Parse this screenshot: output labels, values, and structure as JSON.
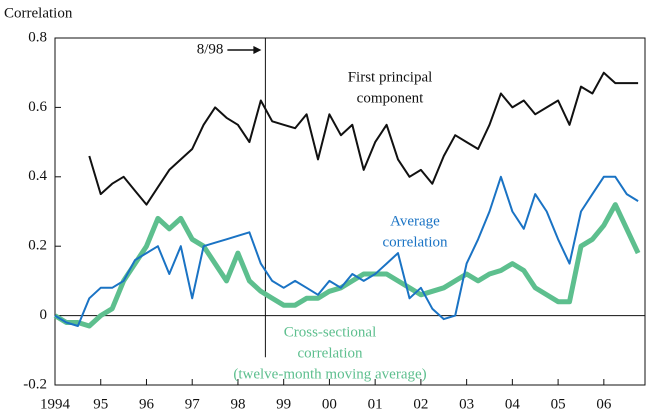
{
  "chart_data": {
    "type": "line",
    "y_label": "Correlation",
    "x": [
      1994.0,
      1994.25,
      1994.5,
      1994.75,
      1995.0,
      1995.25,
      1995.5,
      1995.75,
      1996.0,
      1996.25,
      1996.5,
      1996.75,
      1997.0,
      1997.25,
      1997.5,
      1997.75,
      1998.0,
      1998.25,
      1998.5,
      1998.75,
      1999.0,
      1999.25,
      1999.5,
      1999.75,
      2000.0,
      2000.25,
      2000.5,
      2000.75,
      2001.0,
      2001.25,
      2001.5,
      2001.75,
      2002.0,
      2002.25,
      2002.5,
      2002.75,
      2003.0,
      2003.25,
      2003.5,
      2003.75,
      2004.0,
      2004.25,
      2004.5,
      2004.75,
      2005.0,
      2005.25,
      2005.5,
      2005.75,
      2006.0,
      2006.25,
      2006.5,
      2006.75
    ],
    "series": [
      {
        "name": "First principal component",
        "color": "#111111",
        "width": 2,
        "values": [
          null,
          null,
          null,
          0.46,
          0.35,
          0.38,
          0.4,
          0.36,
          0.32,
          0.37,
          0.42,
          0.45,
          0.48,
          0.55,
          0.6,
          0.57,
          0.55,
          0.5,
          0.62,
          0.56,
          0.55,
          0.54,
          0.58,
          0.45,
          0.58,
          0.52,
          0.55,
          0.42,
          0.5,
          0.55,
          0.45,
          0.4,
          0.42,
          0.38,
          0.46,
          0.52,
          0.5,
          0.48,
          0.55,
          0.64,
          0.6,
          0.62,
          0.58,
          0.6,
          0.62,
          0.55,
          0.66,
          0.64,
          0.7,
          0.67,
          0.67,
          0.67
        ]
      },
      {
        "name": "Average correlation",
        "color": "#1a73c4",
        "width": 2,
        "values": [
          0,
          -0.02,
          -0.03,
          0.05,
          0.08,
          0.08,
          0.1,
          0.16,
          0.18,
          0.2,
          0.12,
          0.2,
          0.05,
          0.2,
          0.21,
          0.22,
          0.23,
          0.24,
          0.15,
          0.1,
          0.08,
          0.1,
          0.08,
          0.06,
          0.1,
          0.08,
          0.12,
          0.1,
          0.12,
          0.15,
          0.18,
          0.05,
          0.08,
          0.02,
          -0.01,
          0.0,
          0.15,
          0.22,
          0.3,
          0.4,
          0.3,
          0.25,
          0.35,
          0.3,
          0.22,
          0.15,
          0.3,
          0.35,
          0.4,
          0.4,
          0.35,
          0.33
        ]
      },
      {
        "name": "Cross-sectional correlation (twelve-month moving average)",
        "color": "#5dbf8e",
        "width": 5,
        "values": [
          0,
          -0.02,
          -0.02,
          -0.03,
          0.0,
          0.02,
          0.1,
          0.15,
          0.2,
          0.28,
          0.25,
          0.28,
          0.22,
          0.2,
          0.15,
          0.1,
          0.18,
          0.1,
          0.07,
          0.05,
          0.03,
          0.03,
          0.05,
          0.05,
          0.07,
          0.08,
          0.1,
          0.12,
          0.12,
          0.12,
          0.1,
          0.08,
          0.06,
          0.07,
          0.08,
          0.1,
          0.12,
          0.1,
          0.12,
          0.13,
          0.15,
          0.13,
          0.08,
          0.06,
          0.04,
          0.04,
          0.2,
          0.22,
          0.26,
          0.32,
          0.25,
          0.18
        ]
      }
    ],
    "annotations": [
      {
        "lines": [
          "First principal",
          "component"
        ]
      },
      {
        "lines": [
          "Average",
          "correlation"
        ]
      },
      {
        "lines": [
          "Cross-sectional",
          "correlation",
          "(twelve-month moving average)"
        ]
      }
    ],
    "event": {
      "x": 1998.6,
      "label": "8/98"
    },
    "xlim": [
      1994.0,
      2006.9
    ],
    "xticks": [
      1994,
      {
        "value": 1995,
        "label": "95"
      },
      {
        "value": 1996,
        "label": "96"
      },
      {
        "value": 1997,
        "label": "97"
      },
      {
        "value": 1998,
        "label": "98"
      },
      {
        "value": 1999,
        "label": "99"
      },
      {
        "value": 2000,
        "label": "00"
      },
      {
        "value": 2001,
        "label": "01"
      },
      {
        "value": 2002,
        "label": "02"
      },
      {
        "value": 2003,
        "label": "03"
      },
      {
        "value": 2004,
        "label": "04"
      },
      {
        "value": 2005,
        "label": "05"
      },
      {
        "value": 2006,
        "label": "06"
      }
    ],
    "ylim": [
      -0.2,
      0.8
    ],
    "yticks": [
      -0.2,
      0,
      0.2,
      0.4,
      0.6,
      0.8
    ]
  }
}
